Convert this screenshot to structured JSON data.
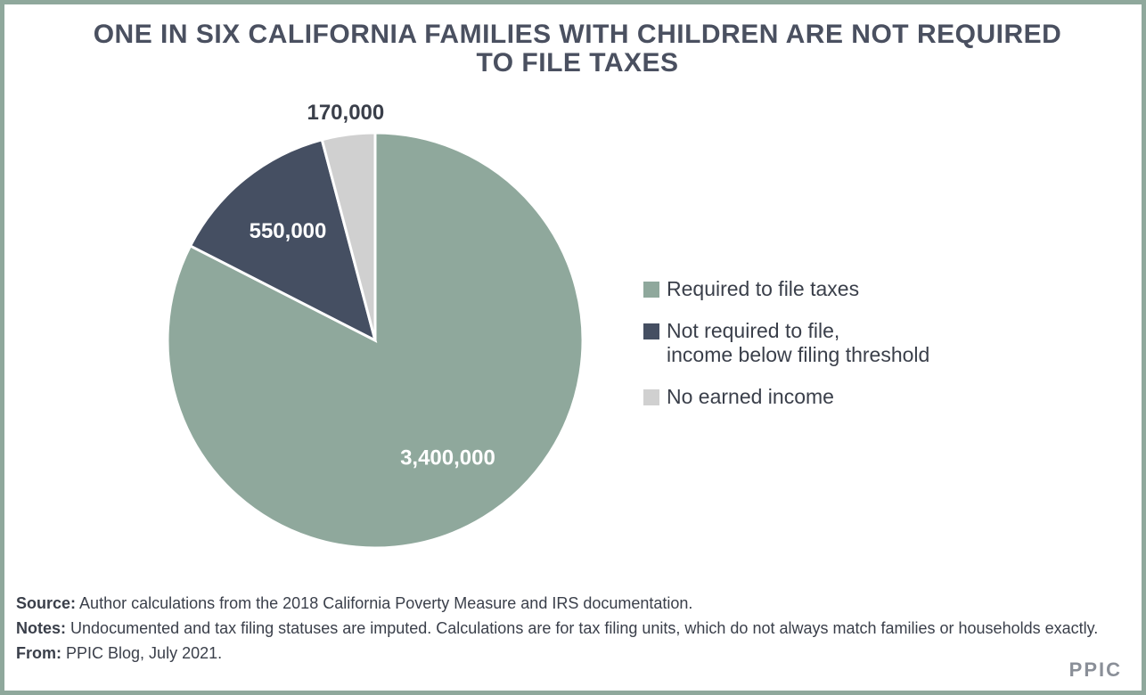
{
  "chart_data": {
    "type": "pie",
    "title": "ONE IN SIX CALIFORNIA FAMILIES WITH CHILDREN ARE NOT REQUIRED TO FILE TAXES",
    "series": [
      {
        "name": "Required to file taxes",
        "color": "#8fa89c",
        "values": [
          3400000
        ],
        "value_labels": [
          "3,400,000"
        ]
      },
      {
        "name": "Not required to file,\nincome below filing threshold",
        "color": "#454f62",
        "values": [
          550000
        ],
        "value_labels": [
          "550,000"
        ]
      },
      {
        "name": "No earned income",
        "color": "#d0d0d0",
        "values": [
          170000
        ],
        "value_labels": [
          "170,000"
        ]
      }
    ],
    "footer": [
      {
        "label": "Source:",
        "text": "Author calculations from the 2018 California Poverty Measure and IRS documentation."
      },
      {
        "label": "Notes:",
        "text": "Undocumented and tax filing statuses are imputed. Calculations are for tax filing units, which do not always match families or households exactly."
      },
      {
        "label": "From:",
        "text": "PPIC Blog, July 2021."
      }
    ],
    "logo": "PPIC"
  }
}
